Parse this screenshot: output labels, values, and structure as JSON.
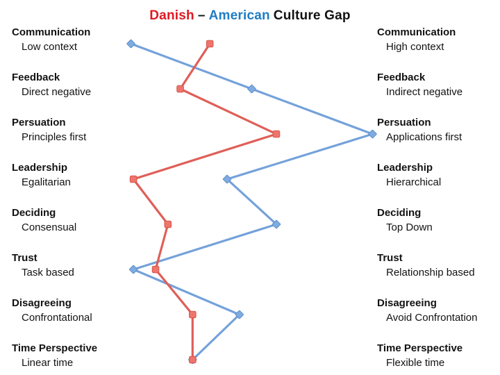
{
  "title": {
    "danish": "Danish",
    "dash": "–",
    "american": "American",
    "rest": "Culture Gap"
  },
  "colors": {
    "title_danish": "#E01920",
    "title_american": "#1F7DC4",
    "title_text": "#121212",
    "label_text": "#121212",
    "danish_line": "#DF5F58",
    "danish_marker_fill": "#EE756C",
    "danish_marker_stroke": "#D8544B",
    "american_line": "#74A2DA",
    "american_marker_fill": "#7FABE0",
    "american_marker_stroke": "#5E8FCB",
    "background": "#FFFFFF"
  },
  "chart_data": {
    "type": "line",
    "title": "Danish – American Culture Gap",
    "orientation": "vertical category axis, horizontal value scale between opposing culture poles",
    "xlim": [
      0,
      100
    ],
    "grid": false,
    "legend": "encoded in title colors (Danish = red, American = blue)",
    "categories": [
      {
        "dimension": "Communication",
        "left_pole": "Low context",
        "right_pole": "High context"
      },
      {
        "dimension": "Feedback",
        "left_pole": "Direct negative",
        "right_pole": "Indirect negative"
      },
      {
        "dimension": "Persuation",
        "left_pole": "Principles first",
        "right_pole": "Applications first"
      },
      {
        "dimension": "Leadership",
        "left_pole": "Egalitarian",
        "right_pole": "Hierarchical"
      },
      {
        "dimension": "Deciding",
        "left_pole": "Consensual",
        "right_pole": "Top Down"
      },
      {
        "dimension": "Trust",
        "left_pole": "Task based",
        "right_pole": "Relationship based"
      },
      {
        "dimension": "Disagreeing",
        "left_pole": "Confrontational",
        "right_pole": "Avoid Confrontation"
      },
      {
        "dimension": "Time Perspective",
        "left_pole": "Linear time",
        "right_pole": "Flexible time"
      }
    ],
    "series": [
      {
        "name": "American",
        "marker": "diamond",
        "color": "#74A2DA",
        "values": [
          1,
          50,
          99,
          40,
          60,
          2,
          45,
          26
        ]
      },
      {
        "name": "Danish",
        "marker": "square",
        "color": "#DF5F58",
        "values": [
          33,
          21,
          60,
          2,
          16,
          11,
          26,
          26
        ]
      }
    ]
  }
}
